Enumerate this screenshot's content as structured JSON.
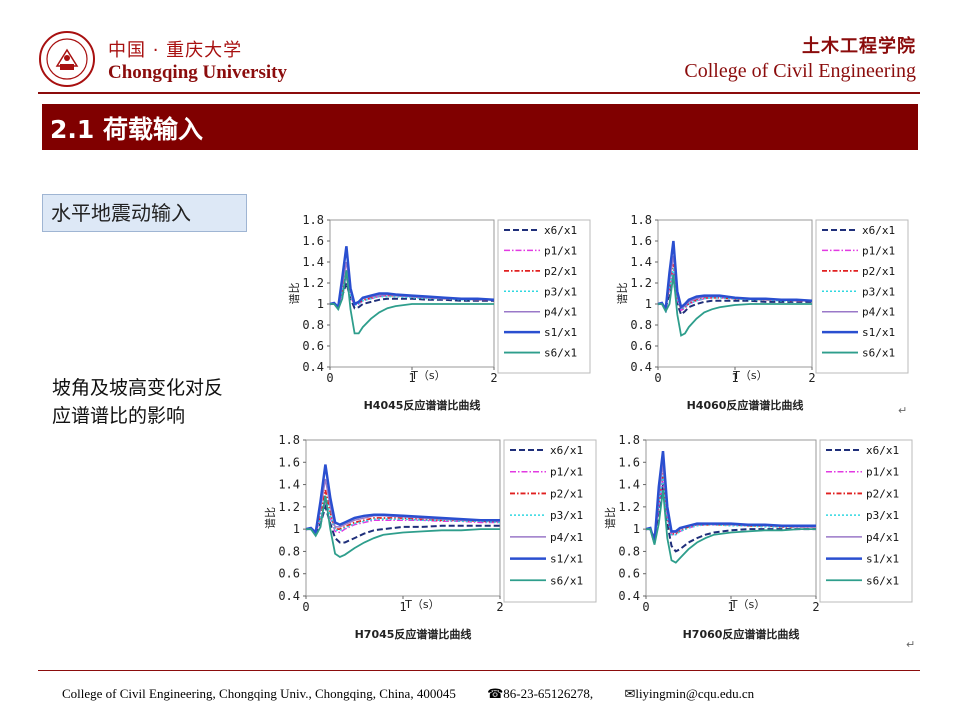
{
  "header": {
    "university_cn": "中国 · 重庆大学",
    "university_en": "Chongqing University",
    "college_cn": "土木工程学院",
    "college_en": "College of Civil Engineering"
  },
  "slide": {
    "title": "2.1 荷载输入",
    "tag": "水平地震动输入",
    "description": "坡角及坡高变化对反应谱谱比的影响"
  },
  "colors": {
    "brand": "#800000",
    "x6x1": "#1f2f7a",
    "p1x1": "#e23ae2",
    "p2x1": "#e02020",
    "p3x1": "#30d8e0",
    "p4x1": "#9a78c8",
    "s1x1": "#2a4fd0",
    "s6x1": "#2e9e8c"
  },
  "chart_data": [
    {
      "type": "line",
      "title": "H4045反应谱谱比曲线",
      "xlabel": "T（s）",
      "ylabel": "谱比",
      "xlim": [
        0,
        2
      ],
      "ylim": [
        0.4,
        1.8
      ],
      "xticks": [
        "0",
        "1",
        "2"
      ],
      "yticks": [
        "0.4",
        "0.6",
        "0.8",
        "1",
        "1.2",
        "1.4",
        "1.6",
        "1.8"
      ],
      "x": [
        0,
        0.05,
        0.1,
        0.15,
        0.2,
        0.25,
        0.3,
        0.35,
        0.4,
        0.5,
        0.6,
        0.7,
        0.8,
        1.0,
        1.2,
        1.4,
        1.6,
        1.8,
        2.0
      ],
      "series": [
        {
          "name": "x6/x1",
          "values": [
            1.0,
            1.0,
            0.98,
            1.08,
            1.2,
            1.05,
            0.96,
            0.97,
            1.0,
            1.02,
            1.04,
            1.05,
            1.05,
            1.05,
            1.04,
            1.04,
            1.03,
            1.03,
            1.03
          ]
        },
        {
          "name": "p1/x1",
          "values": [
            1.0,
            1.0,
            0.99,
            1.1,
            1.25,
            1.07,
            0.99,
            1.0,
            1.03,
            1.05,
            1.07,
            1.08,
            1.08,
            1.07,
            1.06,
            1.05,
            1.05,
            1.04,
            1.04
          ]
        },
        {
          "name": "p2/x1",
          "values": [
            1.0,
            1.0,
            0.98,
            1.15,
            1.32,
            1.1,
            1.0,
            1.01,
            1.04,
            1.06,
            1.08,
            1.08,
            1.08,
            1.07,
            1.06,
            1.05,
            1.05,
            1.04,
            1.04
          ]
        },
        {
          "name": "p3/x1",
          "values": [
            1.0,
            1.0,
            0.99,
            1.12,
            1.28,
            1.08,
            0.99,
            1.0,
            1.03,
            1.05,
            1.07,
            1.07,
            1.07,
            1.06,
            1.05,
            1.05,
            1.04,
            1.04,
            1.04
          ]
        },
        {
          "name": "p4/x1",
          "values": [
            1.0,
            1.0,
            0.98,
            1.18,
            1.4,
            1.12,
            1.0,
            1.02,
            1.05,
            1.07,
            1.08,
            1.09,
            1.08,
            1.07,
            1.06,
            1.05,
            1.05,
            1.04,
            1.04
          ]
        },
        {
          "name": "s1/x1",
          "values": [
            1.0,
            1.01,
            0.97,
            1.25,
            1.55,
            1.15,
            1.0,
            1.02,
            1.06,
            1.08,
            1.1,
            1.1,
            1.09,
            1.08,
            1.07,
            1.06,
            1.05,
            1.05,
            1.04
          ]
        },
        {
          "name": "s6/x1",
          "values": [
            1.0,
            1.0,
            0.95,
            1.05,
            1.32,
            0.95,
            0.72,
            0.72,
            0.78,
            0.86,
            0.92,
            0.96,
            0.98,
            1.0,
            1.0,
            1.0,
            1.0,
            1.0,
            1.0
          ]
        }
      ]
    },
    {
      "type": "line",
      "title": "H4060反应谱谱比曲线",
      "xlabel": "T（s）",
      "ylabel": "谱比",
      "xlim": [
        0,
        2
      ],
      "ylim": [
        0.4,
        1.8
      ],
      "xticks": [
        "0",
        "1",
        "2"
      ],
      "yticks": [
        "0.4",
        "0.6",
        "0.8",
        "1",
        "1.2",
        "1.4",
        "1.6",
        "1.8"
      ],
      "x": [
        0,
        0.05,
        0.1,
        0.15,
        0.2,
        0.25,
        0.3,
        0.35,
        0.4,
        0.5,
        0.6,
        0.7,
        0.8,
        1.0,
        1.2,
        1.4,
        1.6,
        1.8,
        2.0
      ],
      "series": [
        {
          "name": "x6/x1",
          "values": [
            1.0,
            1.0,
            0.96,
            1.1,
            1.25,
            1.0,
            0.9,
            0.93,
            0.97,
            1.0,
            1.02,
            1.03,
            1.03,
            1.03,
            1.03,
            1.02,
            1.02,
            1.02,
            1.02
          ]
        },
        {
          "name": "p1/x1",
          "values": [
            1.0,
            1.0,
            0.97,
            1.14,
            1.3,
            1.04,
            0.94,
            0.96,
            1.0,
            1.03,
            1.05,
            1.06,
            1.06,
            1.05,
            1.05,
            1.04,
            1.04,
            1.03,
            1.03
          ]
        },
        {
          "name": "p2/x1",
          "values": [
            1.0,
            1.0,
            0.96,
            1.18,
            1.38,
            1.06,
            0.95,
            0.97,
            1.01,
            1.04,
            1.06,
            1.06,
            1.06,
            1.05,
            1.05,
            1.04,
            1.04,
            1.03,
            1.03
          ]
        },
        {
          "name": "p3/x1",
          "values": [
            1.0,
            1.0,
            0.97,
            1.16,
            1.34,
            1.05,
            0.95,
            0.97,
            1.0,
            1.03,
            1.05,
            1.06,
            1.06,
            1.05,
            1.04,
            1.04,
            1.03,
            1.03,
            1.03
          ]
        },
        {
          "name": "p4/x1",
          "values": [
            1.0,
            1.0,
            0.96,
            1.22,
            1.46,
            1.08,
            0.96,
            0.98,
            1.02,
            1.05,
            1.07,
            1.07,
            1.07,
            1.06,
            1.05,
            1.04,
            1.04,
            1.03,
            1.03
          ]
        },
        {
          "name": "s1/x1",
          "values": [
            1.0,
            1.01,
            0.95,
            1.3,
            1.6,
            1.12,
            0.97,
            1.0,
            1.04,
            1.07,
            1.08,
            1.08,
            1.08,
            1.06,
            1.05,
            1.05,
            1.04,
            1.04,
            1.03
          ]
        },
        {
          "name": "s6/x1",
          "values": [
            1.0,
            1.0,
            0.93,
            1.0,
            1.28,
            0.9,
            0.7,
            0.72,
            0.78,
            0.86,
            0.92,
            0.95,
            0.97,
            0.99,
            1.0,
            1.0,
            1.0,
            1.0,
            1.0
          ]
        }
      ]
    },
    {
      "type": "line",
      "title": "H7045反应谱谱比曲线",
      "xlabel": "T（s）",
      "ylabel": "谱比",
      "xlim": [
        0,
        2
      ],
      "ylim": [
        0.4,
        1.8
      ],
      "xticks": [
        "0",
        "1",
        "2"
      ],
      "yticks": [
        "0.4",
        "0.6",
        "0.8",
        "1",
        "1.2",
        "1.4",
        "1.6",
        "1.8"
      ],
      "x": [
        0,
        0.05,
        0.1,
        0.15,
        0.2,
        0.25,
        0.3,
        0.35,
        0.4,
        0.5,
        0.6,
        0.7,
        0.8,
        1.0,
        1.2,
        1.4,
        1.6,
        1.8,
        2.0
      ],
      "series": [
        {
          "name": "x6/x1",
          "values": [
            1.0,
            1.0,
            0.97,
            1.05,
            1.2,
            1.05,
            0.92,
            0.88,
            0.88,
            0.92,
            0.96,
            0.99,
            1.0,
            1.02,
            1.02,
            1.03,
            1.03,
            1.03,
            1.03
          ]
        },
        {
          "name": "p1/x1",
          "values": [
            1.0,
            1.0,
            0.98,
            1.08,
            1.25,
            1.1,
            0.98,
            0.97,
            1.0,
            1.04,
            1.06,
            1.08,
            1.08,
            1.08,
            1.08,
            1.07,
            1.07,
            1.06,
            1.06
          ]
        },
        {
          "name": "p2/x1",
          "values": [
            1.0,
            1.0,
            0.98,
            1.12,
            1.35,
            1.15,
            1.0,
            1.0,
            1.02,
            1.06,
            1.08,
            1.1,
            1.1,
            1.1,
            1.09,
            1.08,
            1.08,
            1.07,
            1.07
          ]
        },
        {
          "name": "p3/x1",
          "values": [
            1.0,
            1.0,
            0.98,
            1.1,
            1.3,
            1.12,
            0.99,
            0.99,
            1.01,
            1.05,
            1.07,
            1.09,
            1.09,
            1.09,
            1.08,
            1.08,
            1.07,
            1.07,
            1.06
          ]
        },
        {
          "name": "p4/x1",
          "values": [
            1.0,
            1.0,
            0.98,
            1.18,
            1.45,
            1.2,
            1.02,
            1.02,
            1.04,
            1.08,
            1.1,
            1.12,
            1.12,
            1.11,
            1.1,
            1.09,
            1.08,
            1.08,
            1.07
          ]
        },
        {
          "name": "s1/x1",
          "values": [
            1.0,
            1.01,
            0.97,
            1.25,
            1.58,
            1.28,
            1.06,
            1.04,
            1.06,
            1.1,
            1.12,
            1.13,
            1.13,
            1.12,
            1.11,
            1.1,
            1.09,
            1.08,
            1.08
          ]
        },
        {
          "name": "s6/x1",
          "values": [
            1.0,
            1.0,
            0.94,
            1.02,
            1.3,
            1.0,
            0.78,
            0.75,
            0.77,
            0.83,
            0.88,
            0.92,
            0.95,
            0.97,
            0.98,
            0.99,
            0.99,
            1.0,
            1.0
          ]
        }
      ]
    },
    {
      "type": "line",
      "title": "H7060反应谱谱比曲线",
      "xlabel": "T（s）",
      "ylabel": "谱比",
      "xlim": [
        0,
        2
      ],
      "ylim": [
        0.4,
        1.8
      ],
      "xticks": [
        "0",
        "1",
        "2"
      ],
      "yticks": [
        "0.4",
        "0.6",
        "0.8",
        "1",
        "1.2",
        "1.4",
        "1.6",
        "1.8"
      ],
      "x": [
        0,
        0.05,
        0.1,
        0.15,
        0.2,
        0.25,
        0.3,
        0.35,
        0.4,
        0.5,
        0.6,
        0.7,
        0.8,
        1.0,
        1.2,
        1.4,
        1.6,
        1.8,
        2.0
      ],
      "series": [
        {
          "name": "x6/x1",
          "values": [
            1.0,
            1.0,
            0.92,
            1.15,
            1.4,
            1.05,
            0.85,
            0.8,
            0.82,
            0.88,
            0.92,
            0.95,
            0.97,
            0.99,
            1.0,
            1.0,
            1.0,
            1.0,
            1.0
          ]
        },
        {
          "name": "p1/x1",
          "values": [
            1.0,
            1.0,
            0.92,
            1.2,
            1.45,
            1.1,
            0.95,
            0.95,
            0.98,
            1.01,
            1.03,
            1.04,
            1.04,
            1.04,
            1.03,
            1.03,
            1.02,
            1.02,
            1.02
          ]
        },
        {
          "name": "p2/x1",
          "values": [
            1.0,
            1.0,
            0.91,
            1.25,
            1.5,
            1.12,
            0.96,
            0.96,
            0.99,
            1.02,
            1.04,
            1.04,
            1.04,
            1.04,
            1.03,
            1.03,
            1.02,
            1.02,
            1.02
          ]
        },
        {
          "name": "p3/x1",
          "values": [
            1.0,
            1.0,
            0.92,
            1.22,
            1.48,
            1.1,
            0.95,
            0.95,
            0.98,
            1.01,
            1.03,
            1.04,
            1.04,
            1.03,
            1.03,
            1.02,
            1.02,
            1.02,
            1.02
          ]
        },
        {
          "name": "p4/x1",
          "values": [
            1.0,
            1.0,
            0.9,
            1.3,
            1.58,
            1.15,
            0.97,
            0.97,
            1.0,
            1.03,
            1.04,
            1.05,
            1.05,
            1.04,
            1.04,
            1.03,
            1.03,
            1.02,
            1.02
          ]
        },
        {
          "name": "s1/x1",
          "values": [
            1.0,
            1.01,
            0.88,
            1.38,
            1.7,
            1.2,
            0.98,
            0.98,
            1.01,
            1.03,
            1.05,
            1.05,
            1.05,
            1.05,
            1.04,
            1.04,
            1.03,
            1.03,
            1.03
          ]
        },
        {
          "name": "s6/x1",
          "values": [
            1.0,
            1.0,
            0.86,
            1.05,
            1.35,
            0.92,
            0.72,
            0.7,
            0.74,
            0.82,
            0.88,
            0.92,
            0.95,
            0.97,
            0.98,
            0.99,
            0.99,
            1.0,
            1.0
          ]
        }
      ]
    }
  ],
  "footer": {
    "address": "College of Civil Engineering, Chongqing Univ., Chongqing, China, 400045",
    "phone": "☎86-23-65126278,",
    "email": "✉liyingmin@cqu.edu.cn"
  }
}
